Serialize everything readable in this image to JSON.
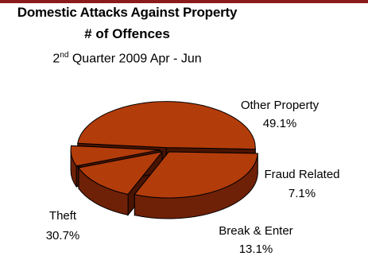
{
  "colors": {
    "top_bar": "#8b1a1a",
    "slice_top": "#b33c0b",
    "slice_side": "#6f2107",
    "slice_side_dark": "#4a1402",
    "outline": "#000000"
  },
  "chart_data": {
    "type": "pie",
    "style": "3d-exploded",
    "title": "Domestic Attacks Against Property",
    "title_line2": "# of Offences",
    "subtitle": {
      "prefix": "2",
      "sup": "nd",
      "rest": " Quarter 2009 Apr - Jun"
    },
    "slices": [
      {
        "label": "Other Property",
        "value": 49.1,
        "value_label": "49.1%"
      },
      {
        "label": "Fraud Related",
        "value": 7.1,
        "value_label": "7.1%"
      },
      {
        "label": "Break & Enter",
        "value": 13.1,
        "value_label": "13.1%"
      },
      {
        "label": "Theft",
        "value": 30.7,
        "value_label": "30.7%"
      }
    ]
  }
}
